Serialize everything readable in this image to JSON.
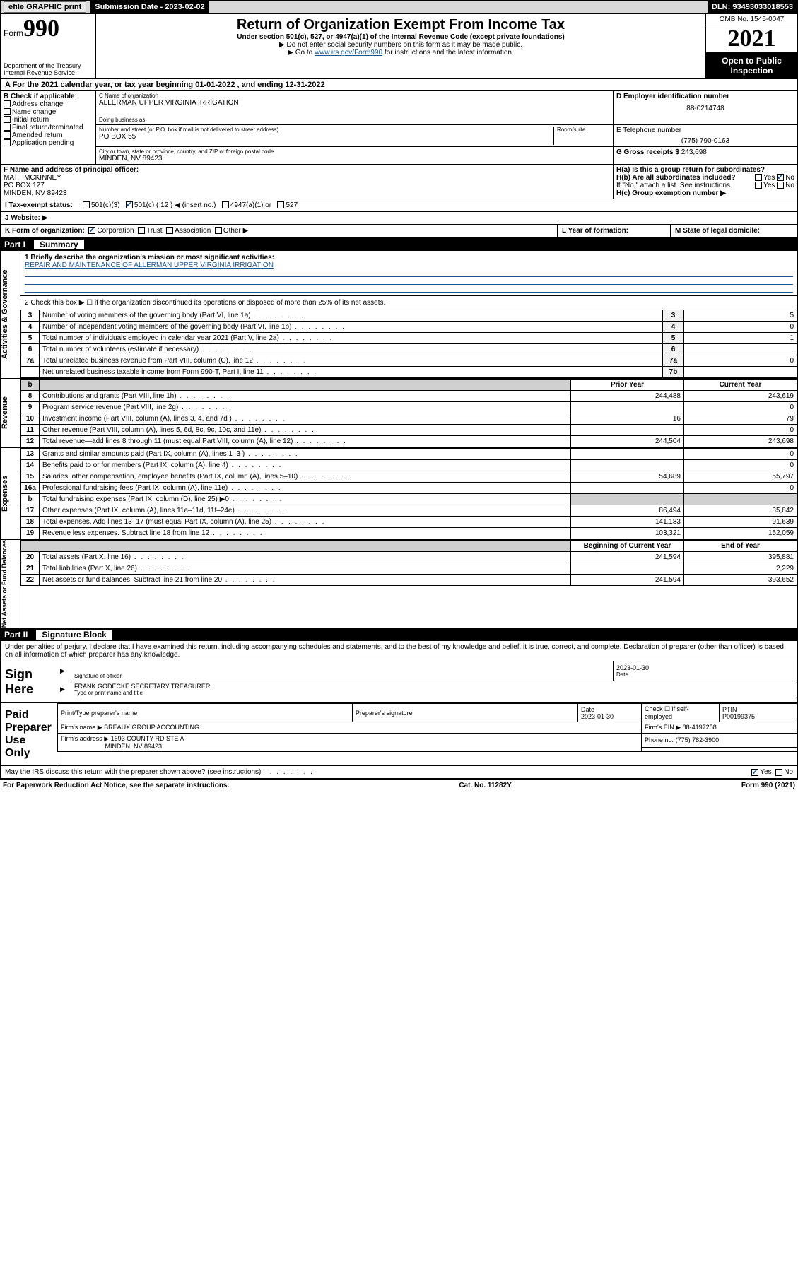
{
  "topbar": {
    "efile": "efile GRAPHIC print",
    "submission_label": "Submission Date - 2023-02-02",
    "dln": "DLN: 93493033018553"
  },
  "header": {
    "form_word": "Form",
    "form_num": "990",
    "dept": "Department of the Treasury",
    "irs": "Internal Revenue Service",
    "title": "Return of Organization Exempt From Income Tax",
    "subtitle": "Under section 501(c), 527, or 4947(a)(1) of the Internal Revenue Code (except private foundations)",
    "note1": "▶ Do not enter social security numbers on this form as it may be made public.",
    "note2_pre": "▶ Go to ",
    "note2_link": "www.irs.gov/Form990",
    "note2_post": " for instructions and the latest information.",
    "omb": "OMB No. 1545-0047",
    "year": "2021",
    "open": "Open to Public Inspection"
  },
  "rowA": "A For the 2021 calendar year, or tax year beginning 01-01-2022   , and ending 12-31-2022",
  "boxB": {
    "label": "B Check if applicable:",
    "items": [
      "Address change",
      "Name change",
      "Initial return",
      "Final return/terminated",
      "Amended return",
      "Application pending"
    ]
  },
  "boxC": {
    "label": "C Name of organization",
    "name": "ALLERMAN UPPER VIRGINIA IRRIGATION",
    "dba_label": "Doing business as",
    "street_label": "Number and street (or P.O. box if mail is not delivered to street address)",
    "street": "PO BOX 55",
    "room_label": "Room/suite",
    "city_label": "City or town, state or province, country, and ZIP or foreign postal code",
    "city": "MINDEN, NV  89423"
  },
  "boxD": {
    "label": "D Employer identification number",
    "value": "88-0214748"
  },
  "boxE": {
    "label": "E Telephone number",
    "value": "(775) 790-0163"
  },
  "boxG": {
    "label": "G Gross receipts $",
    "value": "243,698"
  },
  "boxF": {
    "label": "F Name and address of principal officer:",
    "name": "MATT MCKINNEY",
    "street": "PO BOX 127",
    "city": "MINDEN, NV  89423"
  },
  "boxH": {
    "a": "H(a)  Is this a group return for subordinates?",
    "b": "H(b)  Are all subordinates included?",
    "b_note": "If \"No,\" attach a list. See instructions.",
    "c": "H(c)  Group exemption number ▶",
    "yes": "Yes",
    "no": "No"
  },
  "rowI": {
    "label": "I   Tax-exempt status:",
    "opts": [
      "501(c)(3)",
      "501(c) ( 12 ) ◀ (insert no.)",
      "4947(a)(1) or",
      "527"
    ]
  },
  "rowJ": {
    "label": "J   Website: ▶"
  },
  "rowK": {
    "label": "K Form of organization:",
    "opts": [
      "Corporation",
      "Trust",
      "Association",
      "Other ▶"
    ]
  },
  "rowL": "L Year of formation:",
  "rowM": "M State of legal domicile:",
  "partI": {
    "num": "Part I",
    "title": "Summary"
  },
  "mission": {
    "q": "1  Briefly describe the organization's mission or most significant activities:",
    "a": "REPAIR AND MAINTENANCE OF ALLERMAN UPPER VIRGINIA IRRIGATION"
  },
  "line2": "2   Check this box ▶ ☐  if the organization discontinued its operations or disposed of more than 25% of its net assets.",
  "vtabs": {
    "gov": "Activities & Governance",
    "rev": "Revenue",
    "exp": "Expenses",
    "net": "Net Assets or Fund Balances"
  },
  "lines_gov": [
    {
      "n": "3",
      "t": "Number of voting members of the governing body (Part VI, line 1a)",
      "box": "3",
      "v": "5"
    },
    {
      "n": "4",
      "t": "Number of independent voting members of the governing body (Part VI, line 1b)",
      "box": "4",
      "v": "0"
    },
    {
      "n": "5",
      "t": "Total number of individuals employed in calendar year 2021 (Part V, line 2a)",
      "box": "5",
      "v": "1"
    },
    {
      "n": "6",
      "t": "Total number of volunteers (estimate if necessary)",
      "box": "6",
      "v": ""
    },
    {
      "n": "7a",
      "t": "Total unrelated business revenue from Part VIII, column (C), line 12",
      "box": "7a",
      "v": "0"
    },
    {
      "n": "",
      "t": "Net unrelated business taxable income from Form 990-T, Part I, line 11",
      "box": "7b",
      "v": ""
    }
  ],
  "col_hdr": {
    "b": "b",
    "prior": "Prior Year",
    "curr": "Current Year"
  },
  "lines_rev": [
    {
      "n": "8",
      "t": "Contributions and grants (Part VIII, line 1h)",
      "p": "244,488",
      "c": "243,619"
    },
    {
      "n": "9",
      "t": "Program service revenue (Part VIII, line 2g)",
      "p": "",
      "c": "0"
    },
    {
      "n": "10",
      "t": "Investment income (Part VIII, column (A), lines 3, 4, and 7d )",
      "p": "16",
      "c": "79"
    },
    {
      "n": "11",
      "t": "Other revenue (Part VIII, column (A), lines 5, 6d, 8c, 9c, 10c, and 11e)",
      "p": "",
      "c": "0"
    },
    {
      "n": "12",
      "t": "Total revenue—add lines 8 through 11 (must equal Part VIII, column (A), line 12)",
      "p": "244,504",
      "c": "243,698"
    }
  ],
  "lines_exp": [
    {
      "n": "13",
      "t": "Grants and similar amounts paid (Part IX, column (A), lines 1–3 )",
      "p": "",
      "c": "0"
    },
    {
      "n": "14",
      "t": "Benefits paid to or for members (Part IX, column (A), line 4)",
      "p": "",
      "c": "0"
    },
    {
      "n": "15",
      "t": "Salaries, other compensation, employee benefits (Part IX, column (A), lines 5–10)",
      "p": "54,689",
      "c": "55,797"
    },
    {
      "n": "16a",
      "t": "Professional fundraising fees (Part IX, column (A), line 11e)",
      "p": "",
      "c": "0"
    },
    {
      "n": "b",
      "t": "Total fundraising expenses (Part IX, column (D), line 25) ▶0",
      "p": "shade",
      "c": "shade"
    },
    {
      "n": "17",
      "t": "Other expenses (Part IX, column (A), lines 11a–11d, 11f–24e)",
      "p": "86,494",
      "c": "35,842"
    },
    {
      "n": "18",
      "t": "Total expenses. Add lines 13–17 (must equal Part IX, column (A), line 25)",
      "p": "141,183",
      "c": "91,639"
    },
    {
      "n": "19",
      "t": "Revenue less expenses. Subtract line 18 from line 12",
      "p": "103,321",
      "c": "152,059"
    }
  ],
  "net_hdr": {
    "beg": "Beginning of Current Year",
    "end": "End of Year"
  },
  "lines_net": [
    {
      "n": "20",
      "t": "Total assets (Part X, line 16)",
      "p": "241,594",
      "c": "395,881"
    },
    {
      "n": "21",
      "t": "Total liabilities (Part X, line 26)",
      "p": "",
      "c": "2,229"
    },
    {
      "n": "22",
      "t": "Net assets or fund balances. Subtract line 21 from line 20",
      "p": "241,594",
      "c": "393,652"
    }
  ],
  "partII": {
    "num": "Part II",
    "title": "Signature Block"
  },
  "penalties": "Under penalties of perjury, I declare that I have examined this return, including accompanying schedules and statements, and to the best of my knowledge and belief, it is true, correct, and complete. Declaration of preparer (other than officer) is based on all information of which preparer has any knowledge.",
  "sign": {
    "here": "Sign Here",
    "sig_label": "Signature of officer",
    "date_label": "Date",
    "date": "2023-01-30",
    "name": "FRANK GODECKE  SECRETARY TREASURER",
    "name_label": "Type or print name and title"
  },
  "paid": {
    "here": "Paid Preparer Use Only",
    "col1": "Print/Type preparer's name",
    "col2": "Preparer's signature",
    "col3": "Date",
    "date": "2023-01-30",
    "check": "Check ☐ if self-employed",
    "ptin_l": "PTIN",
    "ptin": "P00199375",
    "firm_l": "Firm's name   ▶",
    "firm": "BREAUX GROUP ACCOUNTING",
    "ein_l": "Firm's EIN ▶",
    "ein": "88-4197258",
    "addr_l": "Firm's address ▶",
    "addr1": "1693 COUNTY RD STE A",
    "addr2": "MINDEN, NV  89423",
    "phone_l": "Phone no.",
    "phone": "(775) 782-3900"
  },
  "may_irs": "May the IRS discuss this return with the preparer shown above? (see instructions)",
  "footer": {
    "left": "For Paperwork Reduction Act Notice, see the separate instructions.",
    "mid": "Cat. No. 11282Y",
    "right": "Form 990 (2021)"
  }
}
